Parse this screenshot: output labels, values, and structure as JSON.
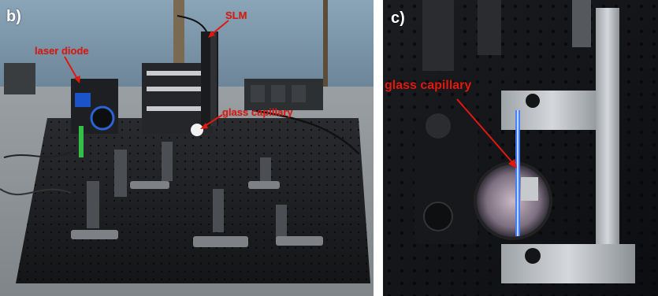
{
  "panels": [
    {
      "letter": "b)",
      "labels": {
        "slm": "SLM",
        "laser_diode": "laser diode",
        "glass_capillary": "glass capillary"
      }
    },
    {
      "letter": "c)",
      "labels": {
        "glass_capillary": "glass capillary"
      }
    }
  ],
  "colors": {
    "annotation": "#e0190f",
    "panel_letter": "#ffffff"
  }
}
